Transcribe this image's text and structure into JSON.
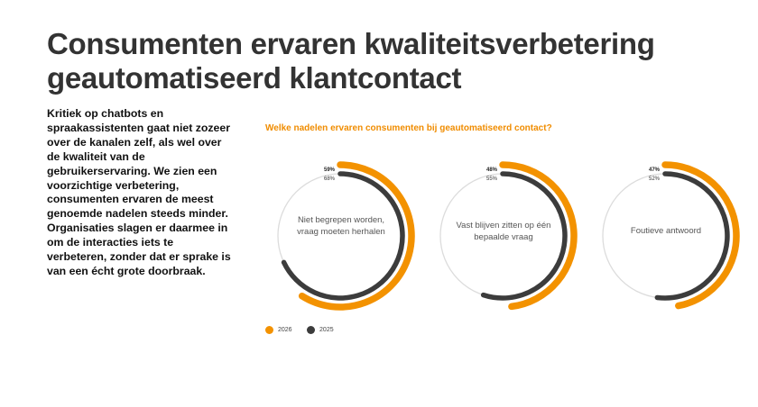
{
  "header": {
    "title_line1": "Consumenten ervaren kwaliteitsverbetering",
    "title_line2": "geautomatiseerd klantcontact"
  },
  "intro_text": "Kritiek op chatbots en spraakassistenten gaat niet zozeer over de kanalen zelf, als wel over de kwaliteit van de gebruikerservaring. We zien een voorzichtige verbetering, consumenten ervaren de meest genoemde nadelen steeds minder. Organisaties slagen er daarmee in om de interacties iets te verbeteren, zonder dat er sprake is van een écht grote doorbraak.",
  "colors": {
    "series_2026": "#f39200",
    "series_2025": "#3c3c3c",
    "track": "#dcdcdc",
    "accent_text": "#f08c00"
  },
  "chart_data": {
    "type": "radial-bar",
    "title": "Welke nadelen ervaren consumenten bij geautomatiseerd contact?",
    "categories": [
      "Niet begrepen worden, vraag moeten herhalen",
      "Vast blijven zitten op één bepaalde vraag",
      "Foutieve antwoord"
    ],
    "series": [
      {
        "name": "2026",
        "values": [
          59,
          48,
          47
        ],
        "labels": [
          "59%",
          "48%",
          "47%"
        ],
        "color": "#f39200"
      },
      {
        "name": "2025",
        "values": [
          68,
          55,
          52
        ],
        "labels": [
          "68%",
          "55%",
          "52%"
        ],
        "color": "#3c3c3c"
      }
    ],
    "ylim": [
      0,
      100
    ],
    "legend_position": "bottom-left"
  },
  "charts": [
    {
      "center_label": "Niet begrepen worden, vraag moeten herhalen",
      "pct_2026": "59%",
      "pct_2025": "68%"
    },
    {
      "center_label": "Vast blijven zitten op één bepaalde vraag",
      "pct_2026": "48%",
      "pct_2025": "55%"
    },
    {
      "center_label": "Foutieve antwoord",
      "pct_2026": "47%",
      "pct_2025": "52%"
    }
  ],
  "legend": [
    {
      "label": "2026",
      "color": "#f39200"
    },
    {
      "label": "2025",
      "color": "#3c3c3c"
    }
  ]
}
